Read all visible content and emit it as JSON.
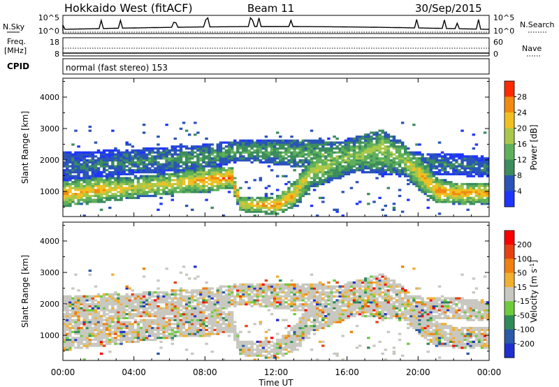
{
  "header": {
    "station": "Hokkaido West (fitACF)",
    "beam": "Beam 11",
    "date": "30/Sep/2015"
  },
  "noise_panel": {
    "left_label": "N.Sky",
    "left_top_tick": "10^5",
    "left_bottom_tick": "10^0",
    "right_top_tick": "10^5",
    "right_bottom_tick": "10^0",
    "right_label": "N.Search"
  },
  "freq_panel": {
    "left_label_1": "Freq.",
    "left_label_2": "[MHz]",
    "left_top_tick": "18",
    "left_bottom_tick": "8",
    "right_top_tick": "60",
    "right_bottom_tick": "0",
    "right_label": "Nave"
  },
  "cpid_panel": {
    "label": "CPID",
    "value": "normal (fast stereo) 153"
  },
  "chart_data": [
    {
      "type": "heatmap",
      "quantity": "Power",
      "ylabel": "Slant Range [km]",
      "xlabel": "",
      "yticks": [
        "1000",
        "2000",
        "3000",
        "4000"
      ],
      "ylim": [
        200,
        4600
      ],
      "xlim": [
        0,
        24
      ],
      "colorbar_label": "Power [dB]",
      "colorbar_ticks": [
        "4",
        "8",
        "12",
        "16",
        "20",
        "24",
        "28"
      ],
      "colorbar_range": [
        0,
        32
      ],
      "colorbar_colors": [
        "#1f35ff",
        "#2a54b8",
        "#3c8c5e",
        "#5fb05a",
        "#a9c84a",
        "#f0c020",
        "#f08a10",
        "#ff2a00"
      ],
      "echo_bands": [
        {
          "t": [
            0,
            2,
            4,
            6,
            8,
            9.5,
            10,
            12,
            13,
            14,
            16,
            18,
            19,
            20,
            21,
            22,
            24
          ],
          "center_km": [
            920,
            1050,
            1120,
            1250,
            1380,
            1450,
            600,
            550,
            900,
            1600,
            2100,
            2400,
            2100,
            1600,
            1050,
            950,
            950
          ],
          "width_km": [
            350,
            350,
            300,
            300,
            350,
            300,
            200,
            250,
            350,
            450,
            500,
            500,
            450,
            450,
            350,
            300,
            300
          ],
          "peak_db": [
            26,
            24,
            20,
            22,
            24,
            28,
            22,
            26,
            24,
            18,
            16,
            18,
            16,
            22,
            26,
            26,
            24
          ]
        },
        {
          "t": [
            0,
            4,
            8,
            10,
            14,
            18,
            20,
            24
          ],
          "center_km": [
            1800,
            1950,
            2100,
            2300,
            2200,
            2000,
            1900,
            1800
          ],
          "width_km": [
            400,
            350,
            350,
            300,
            400,
            400,
            300,
            300
          ],
          "peak_db": [
            8,
            10,
            12,
            12,
            14,
            14,
            10,
            8
          ]
        }
      ]
    },
    {
      "type": "heatmap",
      "quantity": "Velocity",
      "ylabel": "Slant Range [km]",
      "xlabel": "Time UT",
      "xticks": [
        "00:00",
        "04:00",
        "08:00",
        "12:00",
        "16:00",
        "20:00",
        "00:00"
      ],
      "yticks": [
        "1000",
        "2000",
        "3000",
        "4000"
      ],
      "ylim": [
        200,
        4600
      ],
      "xlim": [
        0,
        24
      ],
      "colorbar_label": "Velocity [m s^-1]",
      "colorbar_ticks": [
        "200",
        "100",
        "50",
        "15",
        "-15",
        "-50",
        "-100",
        "-200"
      ],
      "colorbar_colors": [
        "#1f2fd0",
        "#2a5aa8",
        "#2e8b57",
        "#6ecb3c",
        "#c8c8c0",
        "#f0b030",
        "#f08010",
        "#e84010",
        "#ff0000"
      ],
      "dominant_velocity": "-15 to 15"
    }
  ]
}
